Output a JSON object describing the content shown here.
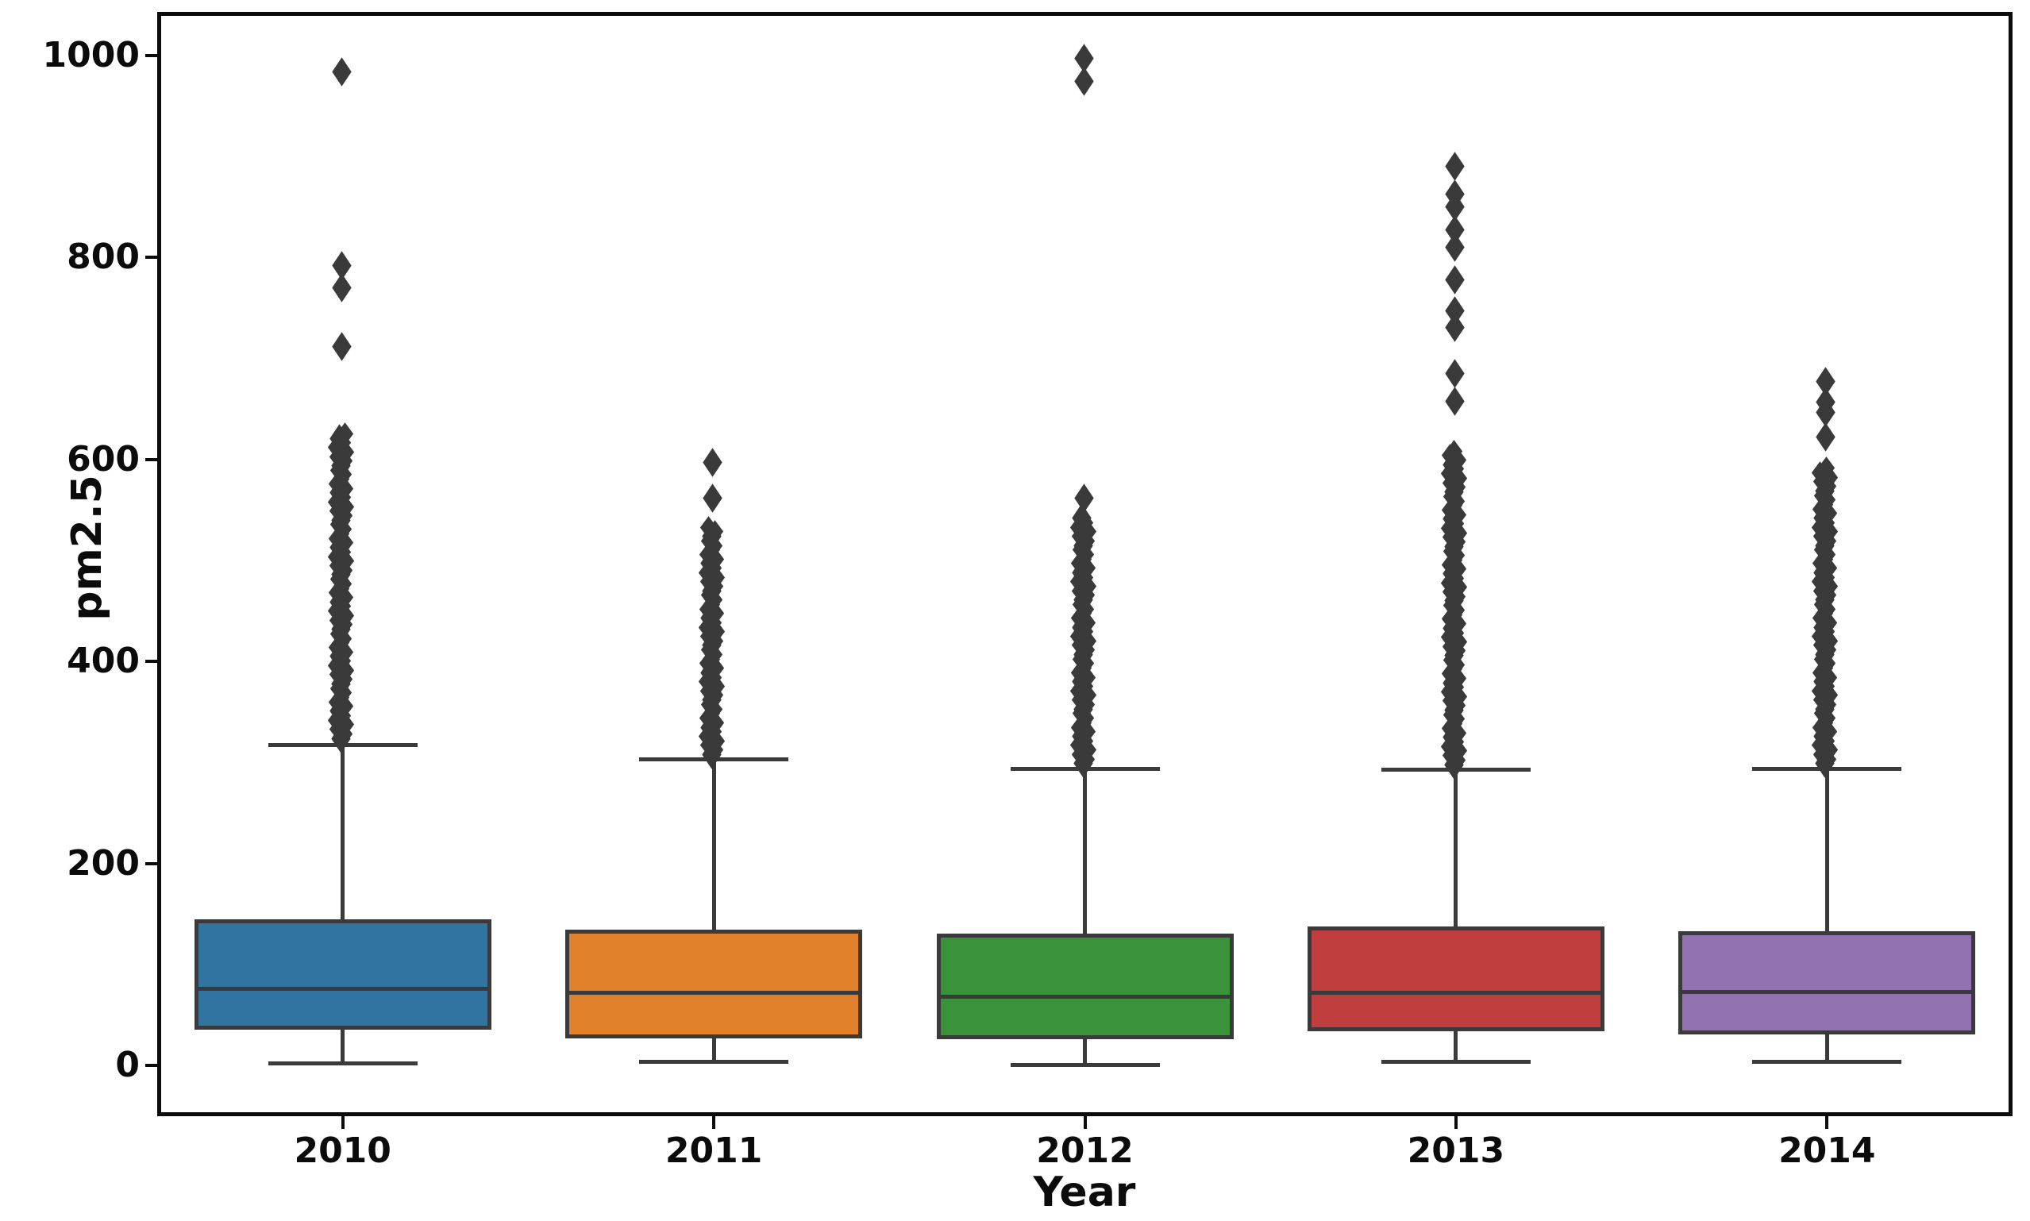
{
  "chart_data": {
    "type": "box",
    "title": "",
    "xlabel": "Year",
    "ylabel": "pm2.5",
    "categories": [
      "2010",
      "2011",
      "2012",
      "2013",
      "2014"
    ],
    "yticks": [
      0,
      200,
      400,
      600,
      800,
      1000
    ],
    "ylim": [
      -50,
      1043
    ],
    "grid": false,
    "legend": null,
    "box_edge_color": "#3a3a3a",
    "flier_color": "#3a3a3a",
    "series": [
      {
        "year": "2010",
        "color": "#3274a1",
        "whisker_low": 2,
        "q1": 36,
        "median": 76,
        "q3": 145,
        "whisker_high": 317,
        "outliers_dense_range": [
          322,
          625
        ],
        "outliers": [
          710,
          768,
          790,
          982
        ]
      },
      {
        "year": "2011",
        "color": "#e1812c",
        "whisker_low": 4,
        "q1": 27,
        "median": 72,
        "q3": 135,
        "whisker_high": 303,
        "outliers_dense_range": [
          306,
          535
        ],
        "outliers": [
          560,
          595
        ]
      },
      {
        "year": "2012",
        "color": "#3a923a",
        "whisker_low": 1,
        "q1": 26,
        "median": 68,
        "q3": 131,
        "whisker_high": 294,
        "outliers_dense_range": [
          297,
          540
        ],
        "outliers": [
          560,
          972,
          995
        ]
      },
      {
        "year": "2013",
        "color": "#c03d3e",
        "whisker_low": 4,
        "q1": 34,
        "median": 72,
        "q3": 138,
        "whisker_high": 293,
        "outliers_dense_range": [
          296,
          610
        ],
        "outliers": [
          656,
          683,
          729,
          745,
          776,
          808,
          825,
          848,
          861,
          888
        ]
      },
      {
        "year": "2014",
        "color": "#9372b2",
        "whisker_low": 4,
        "q1": 31,
        "median": 73,
        "q3": 133,
        "whisker_high": 294,
        "outliers_dense_range": [
          297,
          590
        ],
        "outliers": [
          620,
          645,
          655,
          675
        ]
      }
    ]
  }
}
